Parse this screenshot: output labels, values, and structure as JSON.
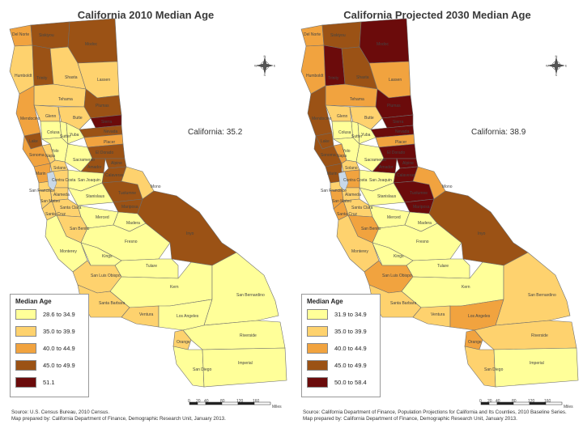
{
  "left": {
    "title": "California 2010 Median Age",
    "state_label": "California: 35.2",
    "legend_title": "Median Age",
    "legend": [
      {
        "label": "28.6 to 34.9",
        "color": "#ffff99"
      },
      {
        "label": "35.0 to 39.9",
        "color": "#fed26e"
      },
      {
        "label": "40.0 to 44.9",
        "color": "#f1a33f"
      },
      {
        "label": "45.0 to 49.9",
        "color": "#9b5215"
      },
      {
        "label": "51.1",
        "color": "#6b0b0b"
      }
    ],
    "source_line1": "Source: U.S. Census Bureau, 2010 Census.",
    "source_line2": "Map prepared by: California Department of Finance, Demographic Research Unit, January 2013.",
    "scale_labels": [
      "0",
      "20",
      "40",
      "80",
      "120",
      "160"
    ],
    "scale_unit": "Miles"
  },
  "right": {
    "title": "California Projected 2030 Median Age",
    "state_label": "California: 38.9",
    "legend_title": "Median Age",
    "legend": [
      {
        "label": "31.9 to 34.9",
        "color": "#ffff99"
      },
      {
        "label": "35.0 to 39.9",
        "color": "#fed26e"
      },
      {
        "label": "40.0 to 44.9",
        "color": "#f1a33f"
      },
      {
        "label": "45.0 to 49.9",
        "color": "#9b5215"
      },
      {
        "label": "50.0 to 58.4",
        "color": "#6b0b0b"
      }
    ],
    "source_line1": "Source: California Department of Finance, Population Projections for California and Its Counties, 2010 Baseline Series.",
    "source_line2": "Map prepared by: California Department of Finance, Demographic Research Unit, January 2013.",
    "scale_labels": [
      "0",
      "20",
      "40",
      "80",
      "120",
      "160"
    ],
    "scale_unit": "Miles"
  },
  "counties": {
    "del_norte": "Del Norte",
    "siskiyou": "Siskiyou",
    "modoc": "Modoc",
    "humboldt": "Humboldt",
    "trinity": "Trinity",
    "shasta": "Shasta",
    "lassen": "Lassen",
    "tehama": "Tehama",
    "plumas": "Plumas",
    "mendocino": "Mendocino",
    "glenn": "Glenn",
    "butte": "Butte",
    "sierra": "Sierra",
    "nevada": "Nevada",
    "lake": "Lake",
    "colusa": "Colusa",
    "sutter": "Sutter",
    "yuba": "Yuba",
    "placer": "Placer",
    "el_dorado": "El Dorado",
    "sonoma": "Sonoma",
    "napa": "Napa",
    "yolo": "Yolo",
    "sacramento": "Sacramento",
    "amador": "Amador",
    "alpine": "Alpine",
    "marin": "Marin",
    "solano": "Solano",
    "calaveras": "Calaveras",
    "tuolumne": "Tuolumne",
    "mono": "Mono",
    "san_francisco": "San Francisco",
    "san_joaquin": "San Joaquin",
    "contra_costa": "Contra Costa",
    "alameda": "Alameda",
    "stanislaus": "Stanislaus",
    "mariposa": "Mariposa",
    "san_mateo": "San Mateo",
    "santa_clara": "Santa Clara",
    "santa_cruz": "Santa Cruz",
    "merced": "Merced",
    "madera": "Madera",
    "san_benito": "San Benito",
    "fresno": "Fresno",
    "inyo": "Inyo",
    "monterey": "Monterey",
    "kings": "Kings",
    "tulare": "Tulare",
    "san_luis_obispo": "San Luis Obispo",
    "kern": "Kern",
    "santa_barbara": "Santa Barbara",
    "ventura": "Ventura",
    "los_angeles": "Los Angeles",
    "san_bernardino": "San Bernardino",
    "riverside": "Riverside",
    "orange": "Orange",
    "san_diego": "San Diego",
    "imperial": "Imperial"
  },
  "compass": {
    "n": "N",
    "s": "S",
    "e": "E",
    "w": "W",
    "icon": "compass-rose-icon"
  },
  "fills": {
    "left": {
      "del_norte": "#f1a33f",
      "siskiyou": "#9b5215",
      "modoc": "#9b5215",
      "humboldt": "#fed26e",
      "trinity": "#9b5215",
      "shasta": "#fed26e",
      "lassen": "#fed26e",
      "tehama": "#fed26e",
      "plumas": "#9b5215",
      "mendocino": "#f1a33f",
      "glenn": "#fed26e",
      "butte": "#fed26e",
      "sierra": "#6b0b0b",
      "nevada": "#9b5215",
      "lake": "#9b5215",
      "colusa": "#ffff99",
      "sutter": "#ffff99",
      "yuba": "#ffff99",
      "placer": "#f1a33f",
      "el_dorado": "#9b5215",
      "sonoma": "#f1a33f",
      "napa": "#fed26e",
      "yolo": "#ffff99",
      "sacramento": "#ffff99",
      "amador": "#9b5215",
      "alpine": "#9b5215",
      "marin": "#f1a33f",
      "solano": "#fed26e",
      "calaveras": "#9b5215",
      "tuolumne": "#9b5215",
      "mono": "#fed26e",
      "san_francisco": "#fed26e",
      "san_joaquin": "#ffff99",
      "contra_costa": "#fed26e",
      "alameda": "#fed26e",
      "stanislaus": "#ffff99",
      "mariposa": "#9b5215",
      "san_mateo": "#fed26e",
      "santa_clara": "#fed26e",
      "santa_cruz": "#fed26e",
      "merced": "#ffff99",
      "madera": "#ffff99",
      "san_benito": "#fed26e",
      "fresno": "#ffff99",
      "inyo": "#9b5215",
      "monterey": "#ffff99",
      "kings": "#ffff99",
      "tulare": "#ffff99",
      "san_luis_obispo": "#fed26e",
      "kern": "#ffff99",
      "santa_barbara": "#fed26e",
      "ventura": "#fed26e",
      "los_angeles": "#ffff99",
      "san_bernardino": "#ffff99",
      "riverside": "#ffff99",
      "orange": "#fed26e",
      "san_diego": "#ffff99",
      "imperial": "#ffff99"
    },
    "right": {
      "del_norte": "#f1a33f",
      "siskiyou": "#9b5215",
      "modoc": "#6b0b0b",
      "humboldt": "#f1a33f",
      "trinity": "#6b0b0b",
      "shasta": "#9b5215",
      "lassen": "#f1a33f",
      "tehama": "#f1a33f",
      "plumas": "#6b0b0b",
      "mendocino": "#9b5215",
      "glenn": "#fed26e",
      "butte": "#fed26e",
      "sierra": "#6b0b0b",
      "nevada": "#6b0b0b",
      "lake": "#9b5215",
      "colusa": "#ffff99",
      "sutter": "#ffff99",
      "yuba": "#ffff99",
      "placer": "#f1a33f",
      "el_dorado": "#6b0b0b",
      "sonoma": "#9b5215",
      "napa": "#f1a33f",
      "yolo": "#ffff99",
      "sacramento": "#ffff99",
      "amador": "#6b0b0b",
      "alpine": "#6b0b0b",
      "marin": "#9b5215",
      "solano": "#fed26e",
      "calaveras": "#6b0b0b",
      "tuolumne": "#6b0b0b",
      "mono": "#f1a33f",
      "san_francisco": "#fed26e",
      "san_joaquin": "#ffff99",
      "contra_costa": "#f1a33f",
      "alameda": "#fed26e",
      "stanislaus": "#ffff99",
      "mariposa": "#6b0b0b",
      "san_mateo": "#f1a33f",
      "santa_clara": "#fed26e",
      "santa_cruz": "#f1a33f",
      "merced": "#ffff99",
      "madera": "#ffff99",
      "san_benito": "#f1a33f",
      "fresno": "#ffff99",
      "inyo": "#9b5215",
      "monterey": "#fed26e",
      "kings": "#ffff99",
      "tulare": "#ffff99",
      "san_luis_obispo": "#f1a33f",
      "kern": "#ffff99",
      "santa_barbara": "#fed26e",
      "ventura": "#fed26e",
      "los_angeles": "#f1a33f",
      "san_bernardino": "#fed26e",
      "riverside": "#fed26e",
      "orange": "#f1a33f",
      "san_diego": "#fed26e",
      "imperial": "#ffff99"
    }
  }
}
